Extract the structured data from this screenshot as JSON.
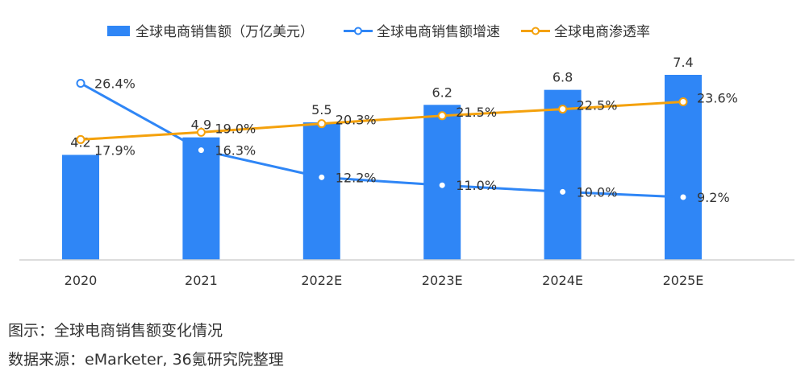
{
  "chart_data": {
    "type": "bar",
    "categories": [
      "2020",
      "2021",
      "2022E",
      "2023E",
      "2024E",
      "2025E"
    ],
    "series": [
      {
        "name": "全球电商销售额（万亿美元）",
        "kind": "bar",
        "axis": "left",
        "color": "#2f86f6",
        "values": [
          4.2,
          4.9,
          5.5,
          6.2,
          6.8,
          7.4
        ],
        "value_labels": [
          "4.2",
          "4.9",
          "5.5",
          "6.2",
          "6.8",
          "7.4"
        ]
      },
      {
        "name": "全球电商销售额增速",
        "kind": "line",
        "axis": "right",
        "color": "#2f86f6",
        "values": [
          26.4,
          16.3,
          12.2,
          11.0,
          10.0,
          9.2
        ],
        "value_labels": [
          "26.4%",
          "16.3%",
          "12.2%",
          "11.0%",
          "10.0%",
          "9.2%"
        ]
      },
      {
        "name": "全球电商渗透率",
        "kind": "line",
        "axis": "right",
        "color": "#f4a10c",
        "values": [
          17.9,
          19.0,
          20.3,
          21.5,
          22.5,
          23.6
        ],
        "value_labels": [
          "17.9%",
          "19.0%",
          "20.3%",
          "21.5%",
          "22.5%",
          "23.6%"
        ]
      }
    ],
    "legend_position": "top",
    "grid": false
  },
  "captions": {
    "figure": "图示：全球电商销售额变化情况",
    "source": "数据来源：eMarketer, 36氪研究院整理"
  }
}
